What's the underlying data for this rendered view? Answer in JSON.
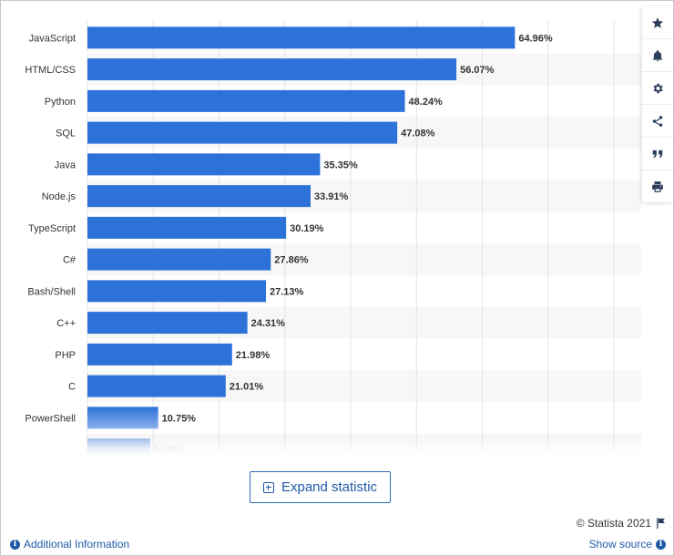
{
  "chart_data": {
    "type": "bar",
    "orientation": "horizontal",
    "categories": [
      "JavaScript",
      "HTML/CSS",
      "Python",
      "SQL",
      "Java",
      "Node.js",
      "TypeScript",
      "C#",
      "Bash/Shell",
      "C++",
      "PHP",
      "C",
      "PowerShell",
      "C..."
    ],
    "values": [
      64.96,
      56.07,
      48.24,
      47.08,
      35.35,
      33.91,
      30.19,
      27.86,
      27.13,
      24.31,
      21.98,
      21.01,
      10.75,
      9.55
    ],
    "value_labels": [
      "64.96%",
      "56.07%",
      "48.24%",
      "47.08%",
      "35.35%",
      "33.91%",
      "30.19%",
      "27.86%",
      "27.13%",
      "24.31%",
      "21.98%",
      "21.01%",
      "10.75%",
      "9.55%"
    ],
    "xlim": [
      0,
      80
    ],
    "grid": true,
    "bar_color": "#2d72d9",
    "title": "",
    "xlabel": "",
    "ylabel": ""
  },
  "toolbar": {
    "icons": [
      "star-icon",
      "bell-icon",
      "gear-icon",
      "share-icon",
      "quote-icon",
      "print-icon"
    ]
  },
  "expand_button": {
    "label": "Expand statistic"
  },
  "footer": {
    "copyright": "© Statista 2021",
    "additional_info": "Additional Information",
    "show_source": "Show source"
  }
}
